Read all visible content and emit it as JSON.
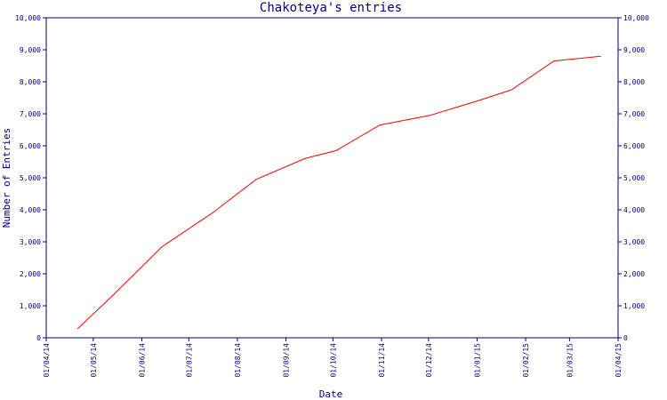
{
  "chart_data": {
    "type": "line",
    "title": "Chakoteya's entries",
    "xlabel": "Date",
    "ylabel": "Number of Entries",
    "x_axis": {
      "tick_labels": [
        "01/04/14",
        "01/05/14",
        "01/06/14",
        "01/07/14",
        "01/08/14",
        "01/09/14",
        "01/10/14",
        "01/11/14",
        "01/12/14",
        "01/01/15",
        "01/02/15",
        "01/03/15",
        "01/04/15"
      ],
      "range": [
        "2014-04-01",
        "2015-04-01"
      ]
    },
    "y_axis": {
      "tick_labels": [
        "0",
        "1,000",
        "2,000",
        "3,000",
        "4,000",
        "5,000",
        "6,000",
        "7,000",
        "8,000",
        "9,000",
        "10,000"
      ],
      "ticks": [
        0,
        1000,
        2000,
        3000,
        4000,
        5000,
        6000,
        7000,
        8000,
        9000,
        10000
      ],
      "range": [
        0,
        10000
      ],
      "mirrored_right": true
    },
    "grid": false,
    "legend": "none",
    "colors": {
      "axis": "#000080",
      "series": "#ff0000",
      "background": "#ffffff"
    },
    "series": [
      {
        "color": "#ff0000",
        "points": [
          {
            "x": "2014-04-21",
            "y": 280
          },
          {
            "x": "2014-05-14",
            "y": 1350
          },
          {
            "x": "2014-06-14",
            "y": 2850
          },
          {
            "x": "2014-07-16",
            "y": 3900
          },
          {
            "x": "2014-08-13",
            "y": 4950
          },
          {
            "x": "2014-09-13",
            "y": 5600
          },
          {
            "x": "2014-10-03",
            "y": 5850
          },
          {
            "x": "2014-10-31",
            "y": 6650
          },
          {
            "x": "2014-12-02",
            "y": 6950
          },
          {
            "x": "2015-01-01",
            "y": 7400
          },
          {
            "x": "2015-01-23",
            "y": 7750
          },
          {
            "x": "2015-02-19",
            "y": 8650
          },
          {
            "x": "2015-03-21",
            "y": 8800
          }
        ]
      }
    ]
  }
}
